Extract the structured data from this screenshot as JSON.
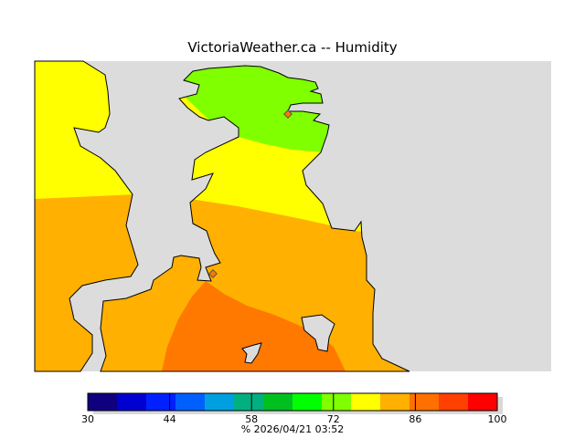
{
  "title": "VictoriaWeather.ca -- Humidity",
  "colors": {
    "water": "#dcdcdc",
    "coast": "#000000"
  },
  "legend": {
    "min": 30,
    "max": 100,
    "step": 5,
    "bins": [
      "#10007f",
      "#0000d0",
      "#0020ff",
      "#0060ff",
      "#00a0e0",
      "#00b080",
      "#00c020",
      "#00ff00",
      "#80ff00",
      "#ffff00",
      "#ffb000",
      "#ff7000",
      "#ff4000",
      "#ff0000"
    ],
    "ticks": [
      "30",
      "44",
      "58",
      "72",
      "86",
      "100"
    ],
    "tick_values": [
      30,
      44,
      58,
      72,
      86,
      100
    ]
  },
  "footer": "%  2026/04/21 03:52",
  "zones": [
    {
      "name": "green",
      "value_range": "75-80",
      "color": "#80ff00"
    },
    {
      "name": "yellow",
      "value_range": "80-85",
      "color": "#ffff00"
    },
    {
      "name": "orange",
      "value_range": "85-90",
      "color": "#ffb000"
    },
    {
      "name": "dark-orange",
      "value_range": "90-95",
      "color": "#ff7800"
    }
  ]
}
